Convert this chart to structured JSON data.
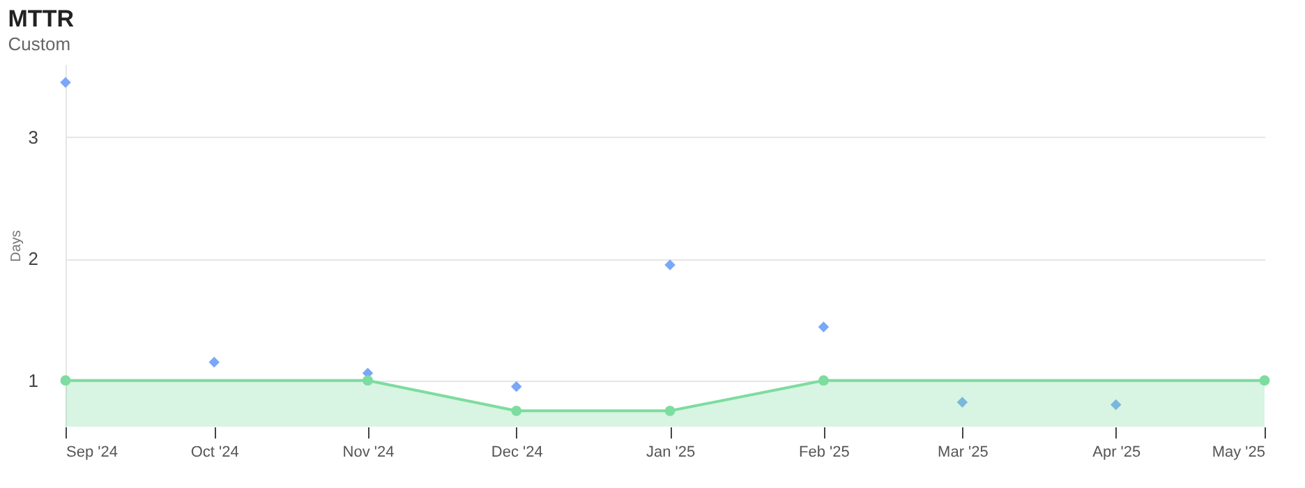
{
  "chart_data": {
    "type": "scatter",
    "title": "MTTR",
    "subtitle": "Custom",
    "ylabel": "Days",
    "x": [
      "2024-09",
      "2024-10",
      "2024-11",
      "2024-12",
      "2025-01",
      "2025-02",
      "2025-03",
      "2025-04"
    ],
    "series": [
      {
        "marker": "diamond",
        "color": "#7aa7f7",
        "values": [
          3.45,
          1.15,
          1.06,
          0.95,
          1.95,
          1.44,
          0.82,
          0.8
        ]
      },
      {
        "type": "area",
        "marker": "circle",
        "color": "#7ddc9f",
        "x": [
          "2024-09",
          "2024-11",
          "2024-12",
          "2025-01",
          "2025-02",
          "2025-05"
        ],
        "values": [
          1,
          1,
          0.75,
          0.75,
          1,
          1
        ]
      }
    ],
    "xlim": [
      "2024-09",
      "2025-05"
    ],
    "xticks": [
      {
        "value": "2024-09",
        "label": "Sep '24"
      },
      {
        "value": "2024-10",
        "label": "Oct '24"
      },
      {
        "value": "2024-11",
        "label": "Nov '24"
      },
      {
        "value": "2024-12",
        "label": "Dec '24"
      },
      {
        "value": "2025-01",
        "label": "Jan '25"
      },
      {
        "value": "2025-02",
        "label": "Feb '25"
      },
      {
        "value": "2025-03",
        "label": "Mar '25"
      },
      {
        "value": "2025-04",
        "label": "Apr '25"
      },
      {
        "value": "2025-05",
        "label": "May '25"
      }
    ],
    "ylim": [
      0.62,
      3.6
    ],
    "yticks": [
      1,
      2,
      3
    ],
    "grid": "y"
  }
}
